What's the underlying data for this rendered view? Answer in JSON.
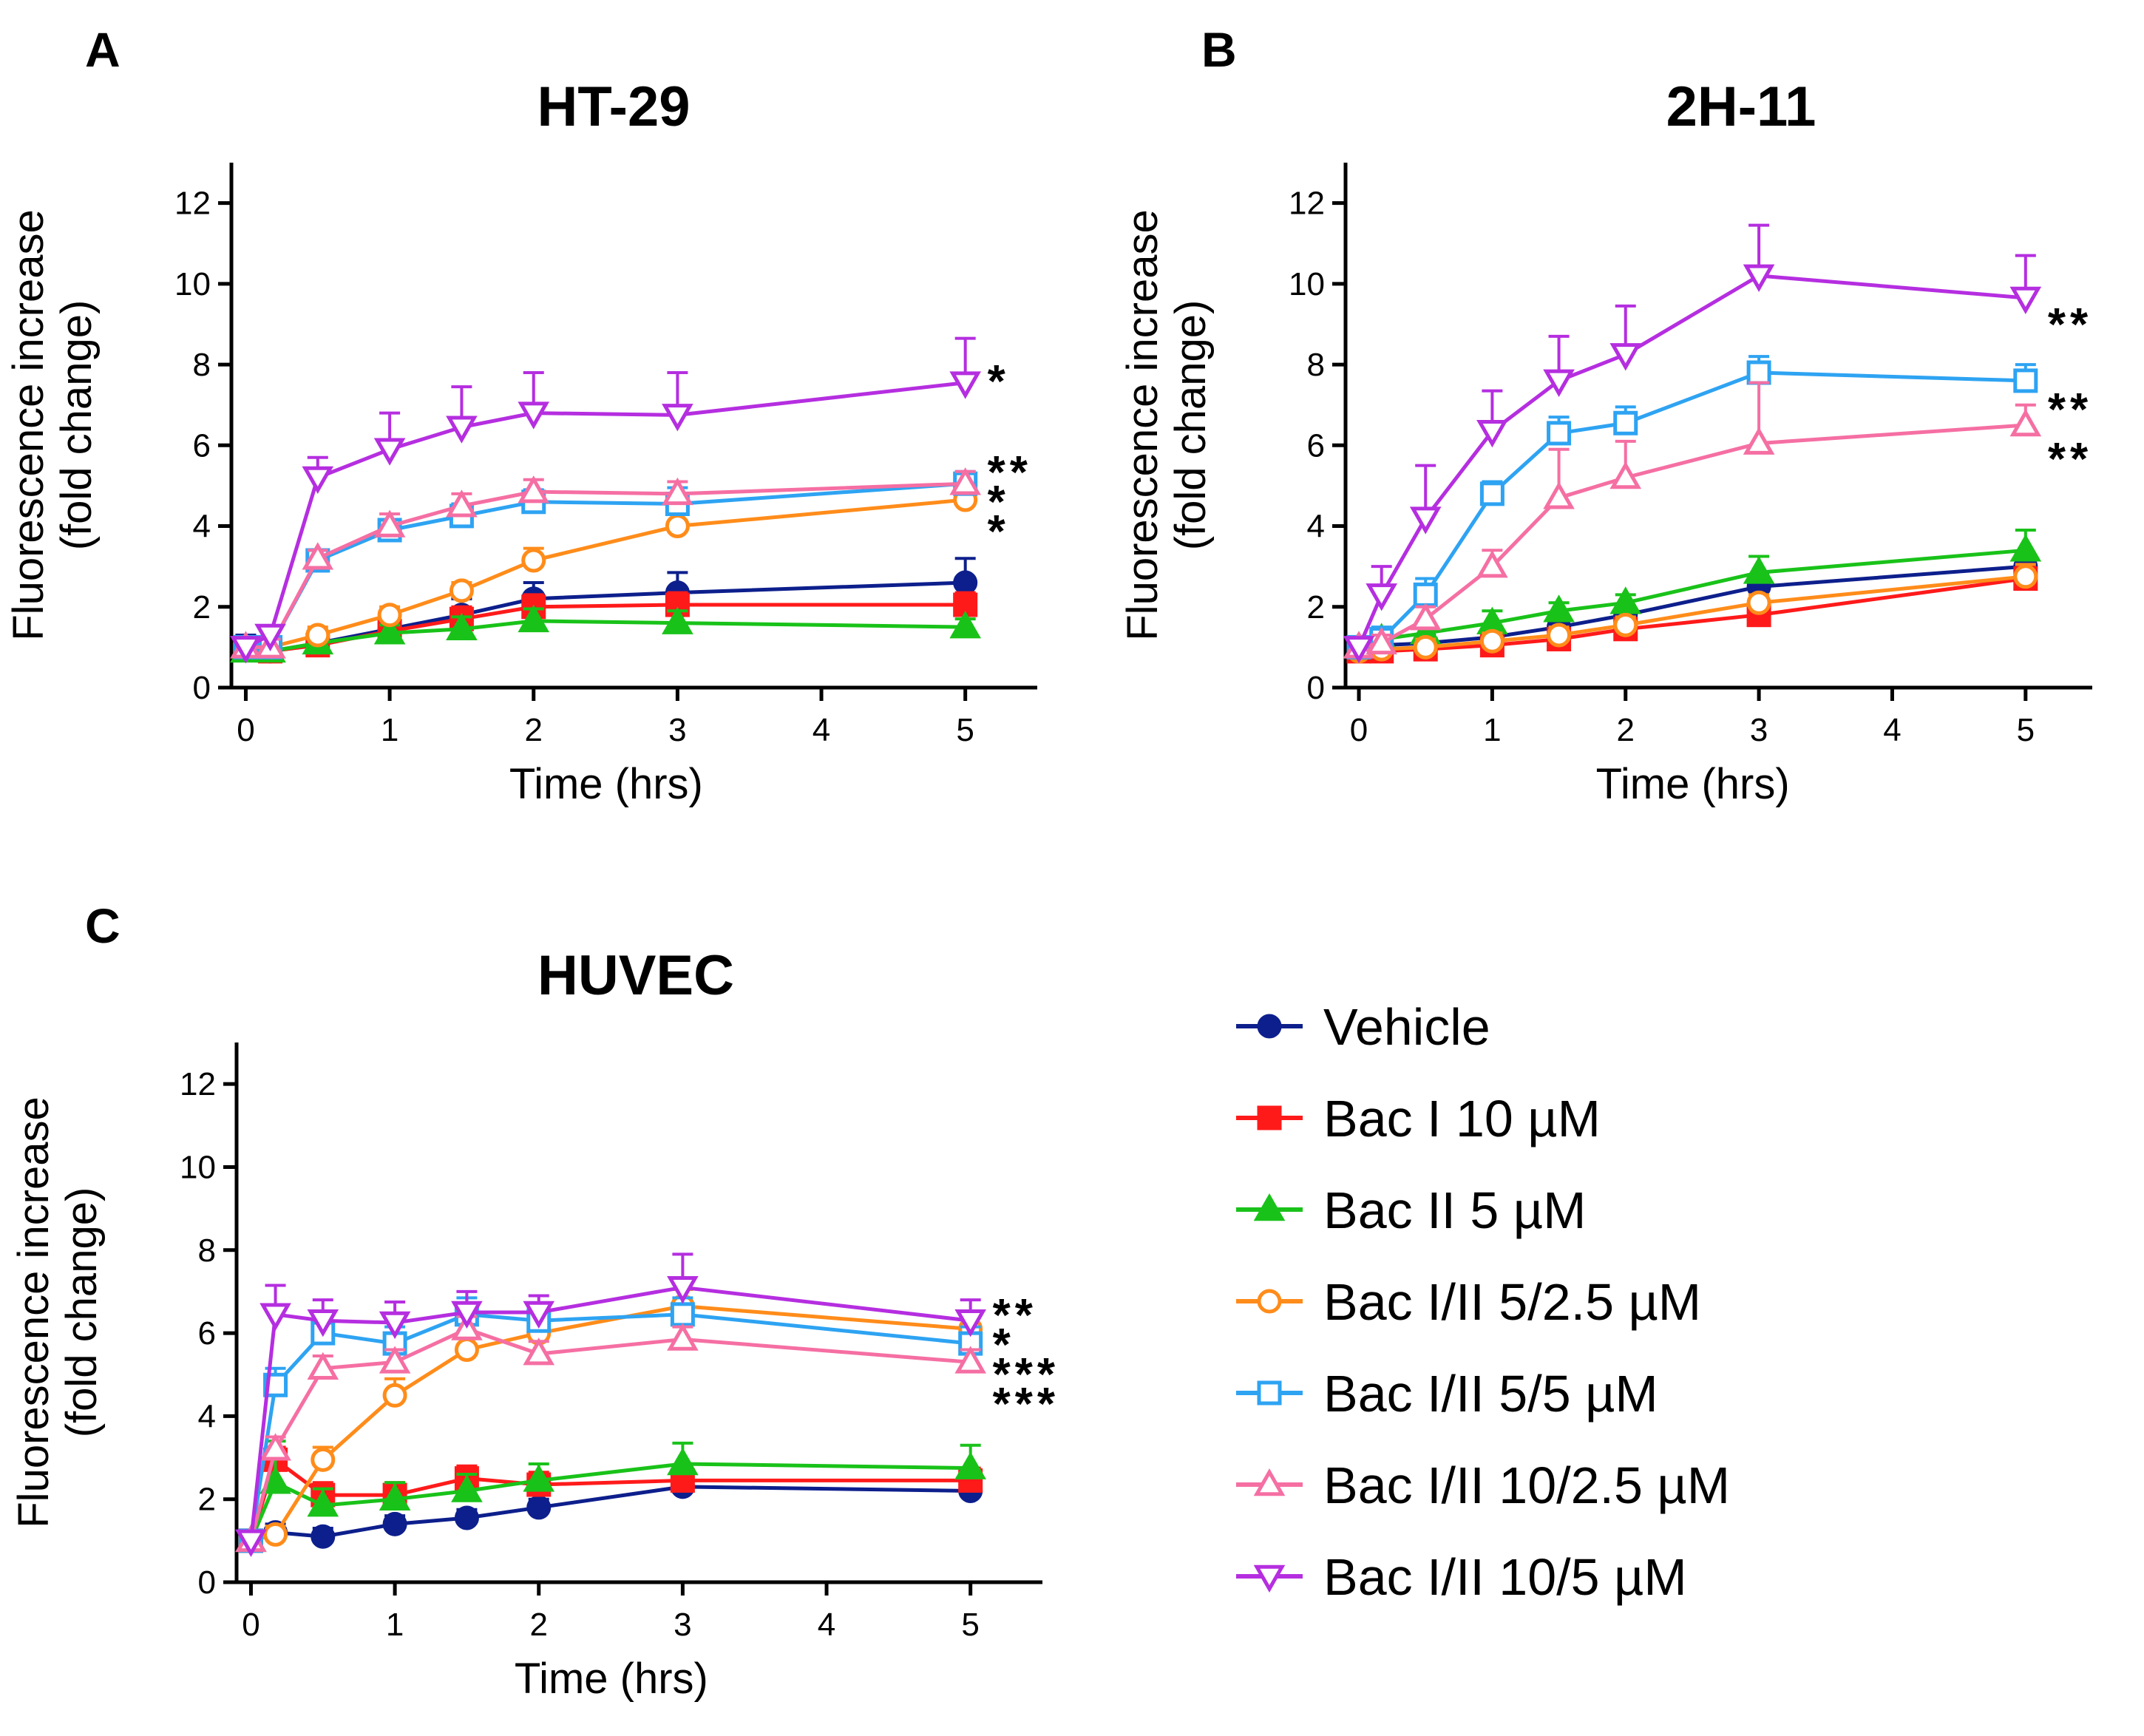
{
  "figure": {
    "xlabel": "Time (hrs)",
    "ylabel_line1": "Fluorescence increase",
    "ylabel_line2": "(fold change)"
  },
  "series_styles": [
    {
      "name": "Vehicle",
      "color": "#0d1f8c",
      "marker": "circle",
      "filled": true
    },
    {
      "name": "Bac I 10 µM",
      "color": "#ff1a1a",
      "marker": "square",
      "filled": true
    },
    {
      "name": "Bac II 5 µM",
      "color": "#19c219",
      "marker": "triangle-up",
      "filled": true
    },
    {
      "name": "Bac I/II 5/2.5 µM",
      "color": "#ff8c1a",
      "marker": "circle",
      "filled": false
    },
    {
      "name": "Bac I/II 5/5 µM",
      "color": "#2ea3f2",
      "marker": "square",
      "filled": false
    },
    {
      "name": "Bac I/II 10/2.5 µM",
      "color": "#f56fa3",
      "marker": "triangle-up",
      "filled": false
    },
    {
      "name": "Bac I/II 10/5 µM",
      "color": "#b52ee0",
      "marker": "triangle-down",
      "filled": false
    }
  ],
  "chart_data": [
    {
      "panel": "A",
      "type": "line",
      "title": "HT-29",
      "xlabel": "Time (hrs)",
      "ylabel": "Fluorescence increase (fold change)",
      "x": [
        0,
        0.17,
        0.5,
        1,
        1.5,
        2,
        3,
        5
      ],
      "xticks": [
        0,
        1,
        2,
        3,
        4,
        5
      ],
      "yticks": [
        0,
        2,
        4,
        6,
        8,
        10,
        12
      ],
      "xlim": [
        -0.1,
        5.5
      ],
      "ylim": [
        0,
        13
      ],
      "series": [
        {
          "name": "Vehicle",
          "values": [
            1.0,
            0.9,
            1.1,
            1.45,
            1.8,
            2.2,
            2.35,
            2.6
          ],
          "errors": [
            0.3,
            0.2,
            0.2,
            0.3,
            0.4,
            0.4,
            0.5,
            0.6
          ]
        },
        {
          "name": "Bac I 10 µM",
          "values": [
            0.95,
            0.9,
            1.05,
            1.4,
            1.7,
            2.0,
            2.05,
            2.05
          ],
          "errors": [
            0.2,
            0.2,
            0.2,
            0.2,
            0.3,
            0.3,
            0.3,
            0.3
          ]
        },
        {
          "name": "Bac II 5 µM",
          "values": [
            0.9,
            0.9,
            1.1,
            1.35,
            1.45,
            1.65,
            1.6,
            1.5
          ],
          "errors": [
            0.2,
            0.2,
            0.2,
            0.2,
            0.3,
            0.3,
            0.3,
            0.2
          ]
        },
        {
          "name": "Bac I/II 5/2.5 µM",
          "values": [
            1.0,
            1.0,
            1.3,
            1.8,
            2.4,
            3.15,
            4.0,
            4.65
          ],
          "errors": [
            0.2,
            0.2,
            0.2,
            0.2,
            0.2,
            0.3,
            0.3,
            0.3
          ]
        },
        {
          "name": "Bac I/II 5/5 µM",
          "values": [
            1.0,
            1.0,
            3.15,
            3.9,
            4.25,
            4.6,
            4.55,
            5.05
          ],
          "errors": [
            0.2,
            0.2,
            0.2,
            0.2,
            0.3,
            0.3,
            0.4,
            0.3
          ]
        },
        {
          "name": "Bac I/II 10/2.5 µM",
          "values": [
            1.0,
            1.0,
            3.2,
            4.0,
            4.5,
            4.85,
            4.8,
            5.05
          ],
          "errors": [
            0.2,
            0.2,
            0.2,
            0.3,
            0.3,
            0.3,
            0.3,
            0.3
          ]
        },
        {
          "name": "Bac I/II 10/5 µM",
          "values": [
            1.0,
            1.3,
            5.2,
            5.9,
            6.45,
            6.8,
            6.75,
            7.55
          ],
          "errors": [
            0.2,
            0.2,
            0.5,
            0.9,
            1.0,
            1.0,
            1.05,
            1.1
          ]
        }
      ],
      "significance": [
        {
          "series": "Bac I/II 10/5 µM",
          "label": "*"
        },
        {
          "series": "Bac I/II 5/5 µM",
          "label": "**"
        },
        {
          "series": "Bac I/II 10/2.5 µM",
          "label": "*"
        },
        {
          "series": "Bac I/II 5/2.5 µM",
          "label": "*"
        }
      ]
    },
    {
      "panel": "B",
      "type": "line",
      "title": "2H-11",
      "xlabel": "Time (hrs)",
      "ylabel": "Fluorescence increase (fold change)",
      "x": [
        0,
        0.17,
        0.5,
        1,
        1.5,
        2,
        3,
        5
      ],
      "xticks": [
        0,
        1,
        2,
        3,
        4,
        5
      ],
      "yticks": [
        0,
        2,
        4,
        6,
        8,
        10,
        12
      ],
      "xlim": [
        -0.1,
        5.5
      ],
      "ylim": [
        0,
        13
      ],
      "series": [
        {
          "name": "Vehicle",
          "values": [
            1.0,
            1.05,
            1.1,
            1.25,
            1.5,
            1.8,
            2.5,
            3.0
          ],
          "errors": [
            0.2,
            0.2,
            0.2,
            0.2,
            0.2,
            0.2,
            0.3,
            0.3
          ]
        },
        {
          "name": "Bac I 10 µM",
          "values": [
            0.9,
            0.9,
            0.95,
            1.05,
            1.2,
            1.45,
            1.8,
            2.7
          ],
          "errors": [
            0.2,
            0.2,
            0.2,
            0.2,
            0.2,
            0.2,
            0.2,
            0.3
          ]
        },
        {
          "name": "Bac II 5 µM",
          "values": [
            1.0,
            1.2,
            1.35,
            1.6,
            1.9,
            2.1,
            2.85,
            3.4
          ],
          "errors": [
            0.2,
            0.2,
            0.2,
            0.3,
            0.2,
            0.2,
            0.4,
            0.5
          ]
        },
        {
          "name": "Bac I/II 5/2.5 µM",
          "values": [
            0.9,
            0.95,
            1.0,
            1.15,
            1.3,
            1.55,
            2.1,
            2.75
          ],
          "errors": [
            0.2,
            0.2,
            0.2,
            0.2,
            0.2,
            0.2,
            0.2,
            0.3
          ]
        },
        {
          "name": "Bac I/II 5/5 µM",
          "values": [
            1.0,
            1.2,
            2.3,
            4.8,
            6.3,
            6.55,
            7.8,
            7.6
          ],
          "errors": [
            0.2,
            0.3,
            0.4,
            0.3,
            0.4,
            0.4,
            0.4,
            0.4
          ]
        },
        {
          "name": "Bac I/II 10/2.5 µM",
          "values": [
            1.0,
            1.1,
            1.7,
            3.0,
            4.7,
            5.2,
            6.05,
            6.5
          ],
          "errors": [
            0.2,
            0.2,
            0.3,
            0.4,
            1.2,
            0.9,
            1.5,
            0.5
          ]
        },
        {
          "name": "Bac I/II 10/5 µM",
          "values": [
            1.0,
            2.3,
            4.2,
            6.35,
            7.6,
            8.25,
            10.2,
            9.65
          ],
          "errors": [
            0.2,
            0.7,
            1.3,
            1.0,
            1.1,
            1.2,
            1.25,
            1.05
          ]
        }
      ],
      "significance": [
        {
          "series": "Bac I/II 10/5 µM",
          "label": "**"
        },
        {
          "series": "Bac I/II 5/5 µM",
          "label": "**"
        },
        {
          "series": "Bac I/II 10/2.5 µM",
          "label": "**"
        }
      ]
    },
    {
      "panel": "C",
      "type": "line",
      "title": "HUVEC",
      "xlabel": "Time (hrs)",
      "ylabel": "Fluorescence increase (fold change)",
      "x": [
        0,
        0.17,
        0.5,
        1,
        1.5,
        2,
        3,
        5
      ],
      "xticks": [
        0,
        1,
        2,
        3,
        4,
        5
      ],
      "yticks": [
        0,
        2,
        4,
        6,
        8,
        10,
        12
      ],
      "xlim": [
        -0.1,
        5.5
      ],
      "ylim": [
        0,
        13
      ],
      "series": [
        {
          "name": "Vehicle",
          "values": [
            1.0,
            1.2,
            1.1,
            1.4,
            1.55,
            1.8,
            2.3,
            2.2
          ],
          "errors": [
            0.2,
            0.2,
            0.2,
            0.2,
            0.2,
            0.2,
            0.2,
            0.2
          ]
        },
        {
          "name": "Bac I 10 µM",
          "values": [
            1.0,
            2.95,
            2.1,
            2.1,
            2.5,
            2.35,
            2.45,
            2.45
          ],
          "errors": [
            0.2,
            0.3,
            0.3,
            0.3,
            0.3,
            0.3,
            0.3,
            0.3
          ]
        },
        {
          "name": "Bac II 5 µM",
          "values": [
            1.0,
            2.4,
            1.85,
            2.0,
            2.2,
            2.45,
            2.85,
            2.75
          ],
          "errors": [
            0.2,
            1.0,
            0.4,
            0.4,
            0.4,
            0.4,
            0.5,
            0.55
          ]
        },
        {
          "name": "Bac I/II 5/2.5 µM",
          "values": [
            1.0,
            1.15,
            2.95,
            4.5,
            5.6,
            6.0,
            6.65,
            6.1
          ],
          "errors": [
            0.2,
            0.2,
            0.3,
            0.4,
            0.4,
            0.4,
            0.4,
            0.4
          ]
        },
        {
          "name": "Bac I/II 5/5 µM",
          "values": [
            1.0,
            4.75,
            6.0,
            5.75,
            6.45,
            6.3,
            6.45,
            5.75
          ],
          "errors": [
            0.2,
            0.4,
            0.4,
            0.4,
            0.4,
            0.4,
            0.4,
            0.4
          ]
        },
        {
          "name": "Bac I/II 10/2.5 µM",
          "values": [
            1.0,
            3.2,
            5.15,
            5.3,
            6.1,
            5.5,
            5.85,
            5.3
          ],
          "errors": [
            0.2,
            0.3,
            0.3,
            0.3,
            0.3,
            0.3,
            0.3,
            0.3
          ]
        },
        {
          "name": "Bac I/II 10/5 µM",
          "values": [
            1.0,
            6.45,
            6.3,
            6.25,
            6.5,
            6.5,
            7.1,
            6.3
          ],
          "errors": [
            0.2,
            0.7,
            0.5,
            0.5,
            0.5,
            0.4,
            0.8,
            0.5
          ]
        }
      ],
      "significance": [
        {
          "series": "Bac I/II 10/5 µM",
          "label": "**"
        },
        {
          "series": "Bac I/II 5/2.5 µM",
          "label": "*"
        },
        {
          "series": "Bac I/II 5/5 µM",
          "label": "***"
        },
        {
          "series": "Bac I/II 10/2.5 µM",
          "label": "***"
        }
      ]
    }
  ]
}
